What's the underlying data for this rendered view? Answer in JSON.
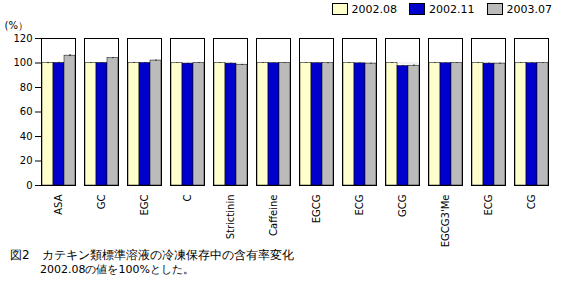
{
  "chart_data": {
    "type": "bar",
    "title": "図2　カテキン類標準溶液の冷凍保存中の含有率変化",
    "subtitle": "2002.08の値を100%とした。",
    "ylabel": "(%）",
    "categories": [
      "ASA",
      "GC",
      "EGC",
      "C",
      "Strictinin",
      "Caffeine",
      "EGCG",
      "ECG",
      "GCG",
      "EGCG3'Me",
      "ECG",
      "CG"
    ],
    "series": [
      {
        "name": "2002.08",
        "color": "#FFFFCC",
        "values": [
          100,
          100,
          100,
          100,
          100,
          100,
          100,
          100,
          100,
          100,
          100,
          100
        ],
        "errors": [
          0.5,
          0.3,
          0.4,
          0.3,
          0.3,
          0.3,
          0.3,
          0.3,
          0.4,
          0.3,
          0.3,
          0.3
        ]
      },
      {
        "name": "2002.11",
        "color": "#0000CC",
        "values": [
          100,
          100,
          100,
          99.5,
          99.5,
          99.8,
          99.8,
          99.7,
          97.5,
          99.8,
          99.5,
          99.8
        ],
        "errors": [
          0.5,
          0.3,
          0.4,
          0.3,
          0.4,
          0.3,
          0.4,
          0.3,
          0.5,
          0.3,
          0.4,
          0.3
        ]
      },
      {
        "name": "2003.07",
        "color": "#BBBBBB",
        "values": [
          106,
          104,
          102,
          100,
          98.5,
          100,
          99.8,
          99.5,
          97.8,
          100,
          99.5,
          100
        ],
        "errors": [
          0.8,
          0.5,
          0.5,
          0.3,
          0.4,
          0.3,
          0.4,
          0.4,
          0.6,
          0.3,
          0.4,
          0.3
        ]
      }
    ],
    "ylim": [
      0,
      120
    ],
    "yticks": [
      0,
      20,
      40,
      60,
      80,
      100,
      120
    ],
    "grid": true,
    "legend": "upper right"
  }
}
